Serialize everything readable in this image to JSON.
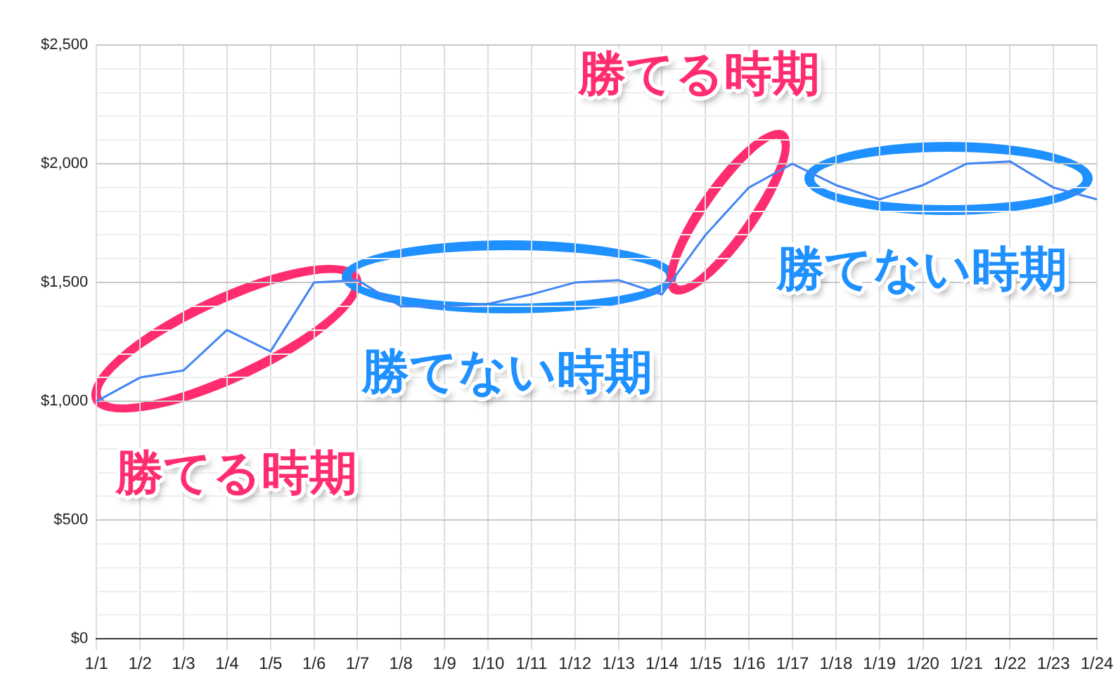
{
  "chart_data": {
    "type": "line",
    "categories": [
      "1/1",
      "1/2",
      "1/3",
      "1/4",
      "1/5",
      "1/6",
      "1/7",
      "1/8",
      "1/9",
      "1/10",
      "1/11",
      "1/12",
      "1/13",
      "1/14",
      "1/15",
      "1/16",
      "1/17",
      "1/18",
      "1/19",
      "1/20",
      "1/21",
      "1/22",
      "1/23",
      "1/24"
    ],
    "series": [
      {
        "color": "#4285f4",
        "values": [
          1000,
          1100,
          1130,
          1300,
          1210,
          1500,
          1510,
          1400,
          1400,
          1410,
          1450,
          1500,
          1510,
          1450,
          1700,
          1900,
          2000,
          1910,
          1850,
          1910,
          2000,
          2010,
          1900,
          1850
        ]
      }
    ],
    "ylim": [
      0,
      2500
    ],
    "yticks": [
      {
        "value": 0,
        "label": "$0"
      },
      {
        "value": 100,
        "label": null
      },
      {
        "value": 200,
        "label": null
      },
      {
        "value": 300,
        "label": null
      },
      {
        "value": 400,
        "label": null
      },
      {
        "value": 500,
        "label": "$500"
      },
      {
        "value": 600,
        "label": null
      },
      {
        "value": 700,
        "label": null
      },
      {
        "value": 800,
        "label": null
      },
      {
        "value": 900,
        "label": null
      },
      {
        "value": 1000,
        "label": "$1,000"
      },
      {
        "value": 1100,
        "label": null
      },
      {
        "value": 1200,
        "label": null
      },
      {
        "value": 1300,
        "label": null
      },
      {
        "value": 1400,
        "label": null
      },
      {
        "value": 1500,
        "label": "$1,500"
      },
      {
        "value": 1600,
        "label": null
      },
      {
        "value": 1700,
        "label": null
      },
      {
        "value": 1800,
        "label": null
      },
      {
        "value": 1900,
        "label": null
      },
      {
        "value": 2000,
        "label": "$2,000"
      },
      {
        "value": 2100,
        "label": null
      },
      {
        "value": 2200,
        "label": null
      },
      {
        "value": 2300,
        "label": null
      },
      {
        "value": 2400,
        "label": null
      },
      {
        "value": 2500,
        "label": "$2,500"
      }
    ],
    "grid": true,
    "legend": false,
    "marker": "none",
    "line_style": "solid",
    "annotations": [
      "勝てる時期",
      "勝てない時期",
      "勝てる時期",
      "勝てない時期"
    ]
  }
}
